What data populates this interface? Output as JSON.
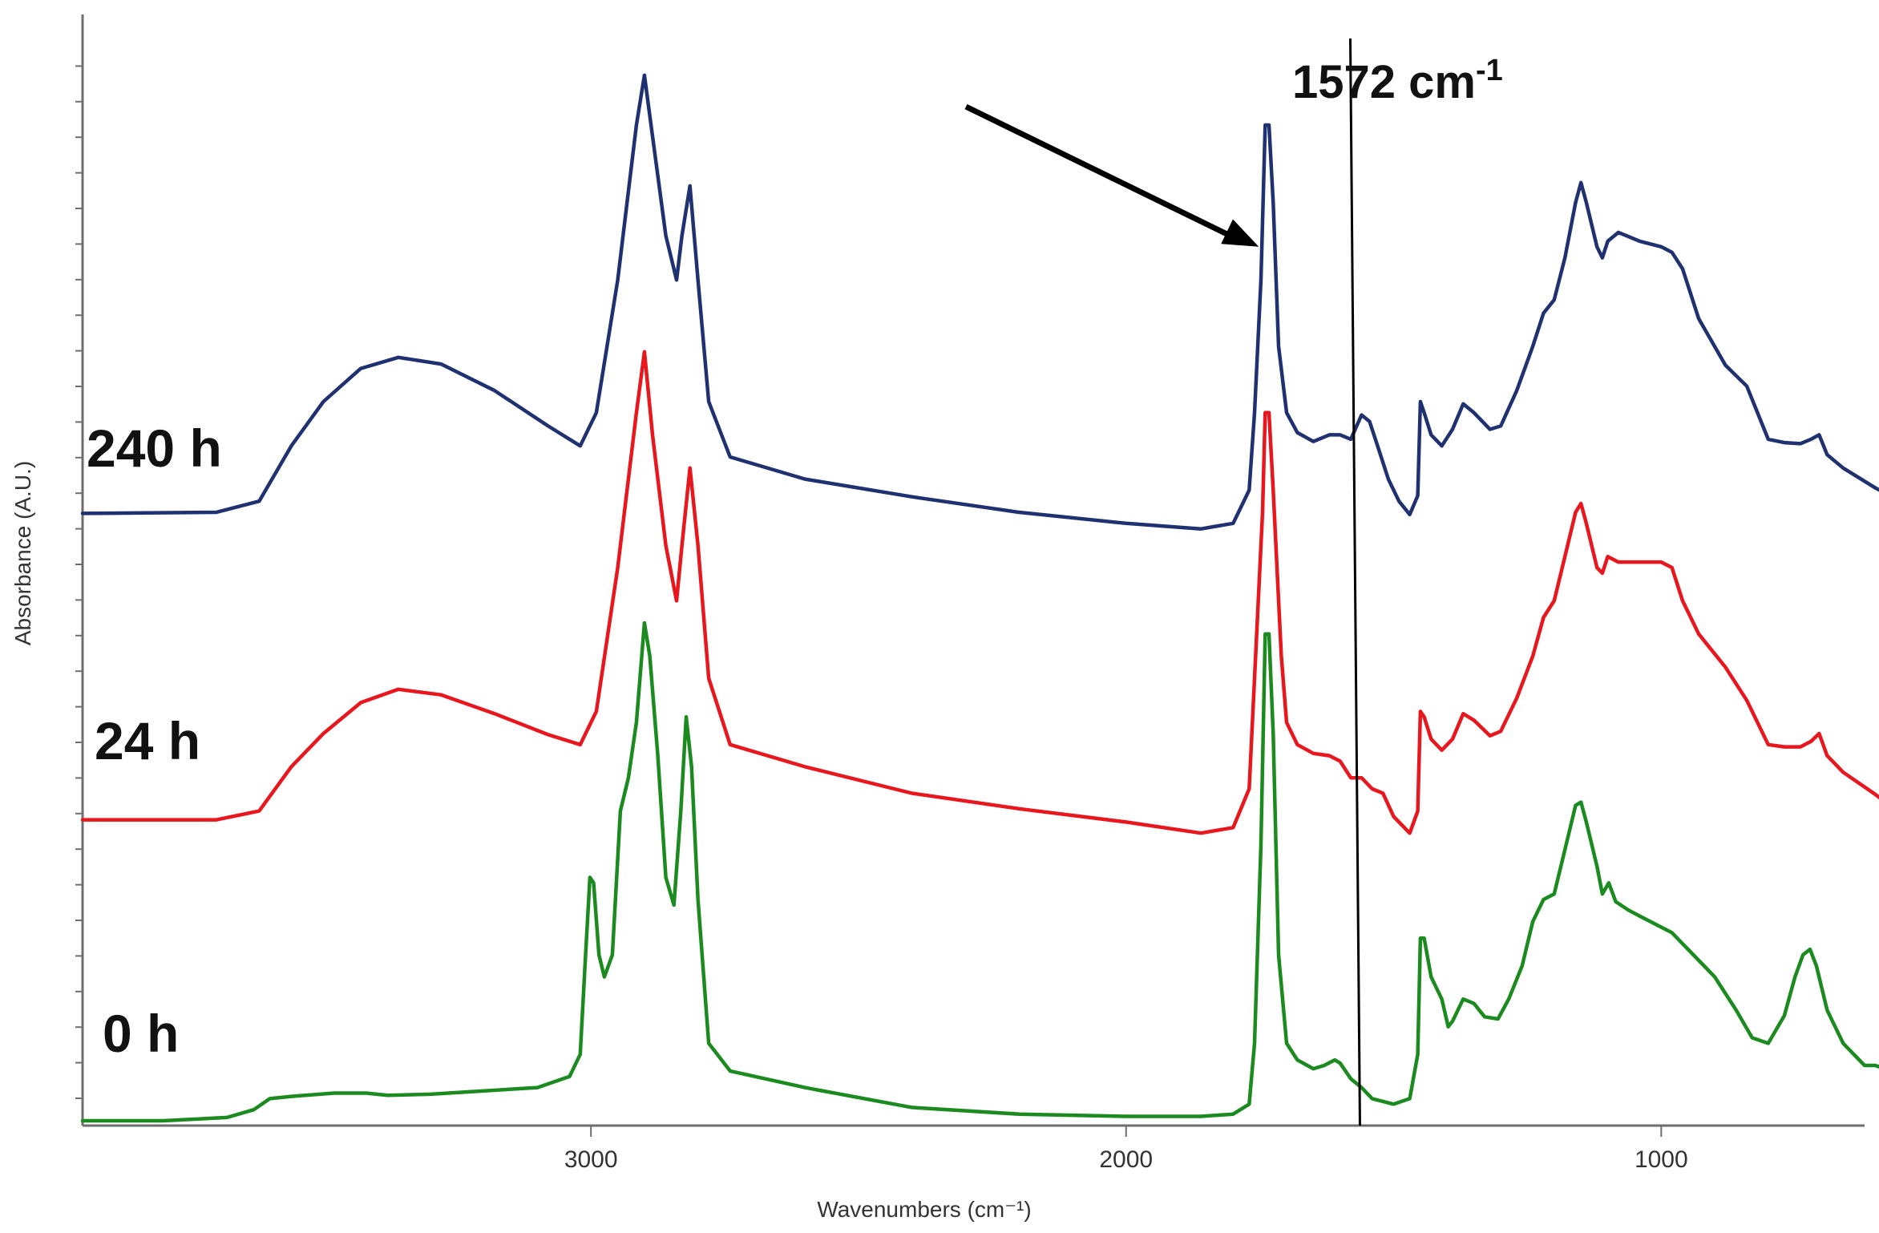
{
  "chart_data": {
    "type": "line",
    "title": "",
    "xlabel": "Wavenumbers (cm⁻¹)",
    "ylabel": "Absorbance (A.U.)",
    "xlim": [
      3950,
      620
    ],
    "ylim": [
      0,
      1
    ],
    "x_reversed": true,
    "x_ticks": [
      3000,
      2000,
      1000
    ],
    "grid": false,
    "legend": "none",
    "series": [
      {
        "name": "240 h",
        "color": "#1f3170",
        "points": [
          [
            3950,
            0.549
          ],
          [
            3700,
            0.55
          ],
          [
            3620,
            0.56
          ],
          [
            3560,
            0.61
          ],
          [
            3500,
            0.65
          ],
          [
            3430,
            0.68
          ],
          [
            3360,
            0.69
          ],
          [
            3280,
            0.684
          ],
          [
            3180,
            0.66
          ],
          [
            3080,
            0.628
          ],
          [
            3020,
            0.61
          ],
          [
            2990,
            0.64
          ],
          [
            2950,
            0.76
          ],
          [
            2930,
            0.84
          ],
          [
            2915,
            0.9
          ],
          [
            2900,
            0.945
          ],
          [
            2885,
            0.89
          ],
          [
            2860,
            0.8
          ],
          [
            2840,
            0.76
          ],
          [
            2830,
            0.8
          ],
          [
            2815,
            0.845
          ],
          [
            2800,
            0.76
          ],
          [
            2780,
            0.65
          ],
          [
            2740,
            0.6
          ],
          [
            2600,
            0.58
          ],
          [
            2400,
            0.564
          ],
          [
            2200,
            0.55
          ],
          [
            2000,
            0.54
          ],
          [
            1860,
            0.535
          ],
          [
            1800,
            0.54
          ],
          [
            1770,
            0.57
          ],
          [
            1760,
            0.64
          ],
          [
            1748,
            0.76
          ],
          [
            1740,
            0.9
          ],
          [
            1733,
            0.9
          ],
          [
            1725,
            0.83
          ],
          [
            1715,
            0.7
          ],
          [
            1700,
            0.64
          ],
          [
            1680,
            0.622
          ],
          [
            1650,
            0.614
          ],
          [
            1620,
            0.62
          ],
          [
            1600,
            0.62
          ],
          [
            1580,
            0.616
          ],
          [
            1560,
            0.638
          ],
          [
            1545,
            0.632
          ],
          [
            1530,
            0.61
          ],
          [
            1510,
            0.58
          ],
          [
            1490,
            0.56
          ],
          [
            1470,
            0.548
          ],
          [
            1455,
            0.565
          ],
          [
            1450,
            0.65
          ],
          [
            1443,
            0.64
          ],
          [
            1430,
            0.62
          ],
          [
            1410,
            0.61
          ],
          [
            1390,
            0.625
          ],
          [
            1370,
            0.648
          ],
          [
            1350,
            0.64
          ],
          [
            1320,
            0.625
          ],
          [
            1300,
            0.628
          ],
          [
            1270,
            0.66
          ],
          [
            1240,
            0.7
          ],
          [
            1220,
            0.73
          ],
          [
            1200,
            0.742
          ],
          [
            1180,
            0.78
          ],
          [
            1160,
            0.83
          ],
          [
            1150,
            0.848
          ],
          [
            1140,
            0.83
          ],
          [
            1120,
            0.79
          ],
          [
            1110,
            0.78
          ],
          [
            1100,
            0.795
          ],
          [
            1080,
            0.803
          ],
          [
            1040,
            0.795
          ],
          [
            1000,
            0.79
          ],
          [
            980,
            0.785
          ],
          [
            960,
            0.77
          ],
          [
            930,
            0.725
          ],
          [
            880,
            0.683
          ],
          [
            840,
            0.664
          ],
          [
            800,
            0.616
          ],
          [
            770,
            0.613
          ],
          [
            740,
            0.612
          ],
          [
            720,
            0.616
          ],
          [
            705,
            0.62
          ],
          [
            690,
            0.602
          ],
          [
            660,
            0.59
          ],
          [
            600,
            0.572
          ],
          [
            560,
            0.562
          ],
          [
            520,
            0.56
          ],
          [
            490,
            0.55
          ],
          [
            470,
            0.56
          ],
          [
            440,
            0.6
          ],
          [
            420,
            0.62
          ],
          [
            400,
            0.638
          ],
          [
            380,
            0.63
          ],
          [
            360,
            0.614
          ],
          [
            335,
            0.61
          ]
        ]
      },
      {
        "name": "24 h",
        "color": "#e8161d",
        "points": [
          [
            3950,
            0.272
          ],
          [
            3700,
            0.272
          ],
          [
            3620,
            0.28
          ],
          [
            3560,
            0.32
          ],
          [
            3500,
            0.35
          ],
          [
            3430,
            0.378
          ],
          [
            3360,
            0.39
          ],
          [
            3280,
            0.385
          ],
          [
            3180,
            0.368
          ],
          [
            3080,
            0.349
          ],
          [
            3020,
            0.34
          ],
          [
            2990,
            0.37
          ],
          [
            2950,
            0.5
          ],
          [
            2930,
            0.58
          ],
          [
            2915,
            0.64
          ],
          [
            2900,
            0.695
          ],
          [
            2885,
            0.62
          ],
          [
            2860,
            0.52
          ],
          [
            2840,
            0.47
          ],
          [
            2830,
            0.52
          ],
          [
            2815,
            0.59
          ],
          [
            2800,
            0.52
          ],
          [
            2780,
            0.4
          ],
          [
            2740,
            0.34
          ],
          [
            2600,
            0.32
          ],
          [
            2400,
            0.296
          ],
          [
            2200,
            0.282
          ],
          [
            2000,
            0.27
          ],
          [
            1860,
            0.26
          ],
          [
            1800,
            0.265
          ],
          [
            1770,
            0.3
          ],
          [
            1760,
            0.4
          ],
          [
            1745,
            0.55
          ],
          [
            1740,
            0.64
          ],
          [
            1733,
            0.64
          ],
          [
            1725,
            0.57
          ],
          [
            1710,
            0.42
          ],
          [
            1700,
            0.36
          ],
          [
            1680,
            0.34
          ],
          [
            1650,
            0.332
          ],
          [
            1620,
            0.33
          ],
          [
            1600,
            0.325
          ],
          [
            1580,
            0.31
          ],
          [
            1560,
            0.31
          ],
          [
            1540,
            0.3
          ],
          [
            1520,
            0.296
          ],
          [
            1500,
            0.275
          ],
          [
            1470,
            0.26
          ],
          [
            1455,
            0.28
          ],
          [
            1450,
            0.37
          ],
          [
            1443,
            0.365
          ],
          [
            1430,
            0.345
          ],
          [
            1410,
            0.335
          ],
          [
            1390,
            0.345
          ],
          [
            1370,
            0.368
          ],
          [
            1350,
            0.362
          ],
          [
            1320,
            0.348
          ],
          [
            1300,
            0.352
          ],
          [
            1270,
            0.382
          ],
          [
            1240,
            0.42
          ],
          [
            1220,
            0.455
          ],
          [
            1200,
            0.47
          ],
          [
            1180,
            0.51
          ],
          [
            1160,
            0.55
          ],
          [
            1150,
            0.558
          ],
          [
            1140,
            0.54
          ],
          [
            1120,
            0.5
          ],
          [
            1110,
            0.495
          ],
          [
            1100,
            0.51
          ],
          [
            1080,
            0.505
          ],
          [
            1040,
            0.505
          ],
          [
            1000,
            0.505
          ],
          [
            980,
            0.5
          ],
          [
            960,
            0.47
          ],
          [
            930,
            0.44
          ],
          [
            880,
            0.41
          ],
          [
            840,
            0.38
          ],
          [
            800,
            0.34
          ],
          [
            770,
            0.338
          ],
          [
            740,
            0.338
          ],
          [
            720,
            0.343
          ],
          [
            705,
            0.35
          ],
          [
            690,
            0.33
          ],
          [
            660,
            0.315
          ],
          [
            600,
            0.295
          ],
          [
            560,
            0.28
          ],
          [
            520,
            0.276
          ],
          [
            490,
            0.26
          ],
          [
            470,
            0.27
          ],
          [
            440,
            0.3
          ],
          [
            420,
            0.33
          ],
          [
            400,
            0.35
          ],
          [
            380,
            0.345
          ],
          [
            360,
            0.33
          ],
          [
            335,
            0.322
          ]
        ]
      },
      {
        "name": "0 h",
        "color": "#1b8a1f",
        "points": [
          [
            3950,
            0.0
          ],
          [
            3800,
            0.0
          ],
          [
            3680,
            0.003
          ],
          [
            3630,
            0.01
          ],
          [
            3600,
            0.02
          ],
          [
            3560,
            0.022
          ],
          [
            3480,
            0.025
          ],
          [
            3420,
            0.025
          ],
          [
            3380,
            0.023
          ],
          [
            3300,
            0.024
          ],
          [
            3100,
            0.03
          ],
          [
            3040,
            0.04
          ],
          [
            3020,
            0.06
          ],
          [
            3010,
            0.15
          ],
          [
            3002,
            0.22
          ],
          [
            2995,
            0.215
          ],
          [
            2985,
            0.15
          ],
          [
            2975,
            0.13
          ],
          [
            2960,
            0.15
          ],
          [
            2945,
            0.28
          ],
          [
            2930,
            0.31
          ],
          [
            2915,
            0.36
          ],
          [
            2900,
            0.45
          ],
          [
            2890,
            0.42
          ],
          [
            2875,
            0.33
          ],
          [
            2860,
            0.22
          ],
          [
            2845,
            0.195
          ],
          [
            2832,
            0.28
          ],
          [
            2822,
            0.365
          ],
          [
            2812,
            0.32
          ],
          [
            2800,
            0.2
          ],
          [
            2780,
            0.07
          ],
          [
            2740,
            0.045
          ],
          [
            2600,
            0.03
          ],
          [
            2400,
            0.012
          ],
          [
            2200,
            0.006
          ],
          [
            2000,
            0.004
          ],
          [
            1860,
            0.004
          ],
          [
            1800,
            0.006
          ],
          [
            1770,
            0.015
          ],
          [
            1760,
            0.07
          ],
          [
            1748,
            0.25
          ],
          [
            1740,
            0.44
          ],
          [
            1733,
            0.44
          ],
          [
            1725,
            0.35
          ],
          [
            1715,
            0.15
          ],
          [
            1700,
            0.07
          ],
          [
            1680,
            0.055
          ],
          [
            1650,
            0.047
          ],
          [
            1630,
            0.05
          ],
          [
            1610,
            0.055
          ],
          [
            1600,
            0.052
          ],
          [
            1580,
            0.038
          ],
          [
            1560,
            0.03
          ],
          [
            1540,
            0.02
          ],
          [
            1500,
            0.015
          ],
          [
            1470,
            0.02
          ],
          [
            1455,
            0.06
          ],
          [
            1450,
            0.165
          ],
          [
            1443,
            0.165
          ],
          [
            1430,
            0.13
          ],
          [
            1410,
            0.11
          ],
          [
            1398,
            0.085
          ],
          [
            1390,
            0.09
          ],
          [
            1370,
            0.11
          ],
          [
            1350,
            0.106
          ],
          [
            1330,
            0.094
          ],
          [
            1305,
            0.092
          ],
          [
            1285,
            0.11
          ],
          [
            1260,
            0.14
          ],
          [
            1240,
            0.18
          ],
          [
            1220,
            0.2
          ],
          [
            1200,
            0.205
          ],
          [
            1180,
            0.245
          ],
          [
            1160,
            0.285
          ],
          [
            1150,
            0.288
          ],
          [
            1140,
            0.27
          ],
          [
            1120,
            0.23
          ],
          [
            1110,
            0.205
          ],
          [
            1098,
            0.215
          ],
          [
            1085,
            0.198
          ],
          [
            1060,
            0.19
          ],
          [
            1040,
            0.185
          ],
          [
            1000,
            0.175
          ],
          [
            980,
            0.17
          ],
          [
            960,
            0.16
          ],
          [
            940,
            0.15
          ],
          [
            900,
            0.13
          ],
          [
            860,
            0.1
          ],
          [
            830,
            0.075
          ],
          [
            800,
            0.07
          ],
          [
            770,
            0.095
          ],
          [
            750,
            0.13
          ],
          [
            735,
            0.15
          ],
          [
            722,
            0.155
          ],
          [
            710,
            0.14
          ],
          [
            690,
            0.1
          ],
          [
            660,
            0.07
          ],
          [
            620,
            0.05
          ],
          [
            600,
            0.05
          ],
          [
            570,
            0.045
          ],
          [
            540,
            0.037
          ],
          [
            520,
            0.03
          ],
          [
            500,
            0.04
          ],
          [
            480,
            0.06
          ],
          [
            460,
            0.08
          ],
          [
            440,
            0.098
          ],
          [
            420,
            0.105
          ],
          [
            400,
            0.1
          ],
          [
            380,
            0.09
          ],
          [
            360,
            0.085
          ],
          [
            335,
            0.08
          ]
        ]
      }
    ],
    "annotations": {
      "marker_text": "1572 cm",
      "marker_sup": "-1",
      "marker_x": 1572,
      "arrow_target": [
        1740,
        0.79
      ]
    }
  }
}
